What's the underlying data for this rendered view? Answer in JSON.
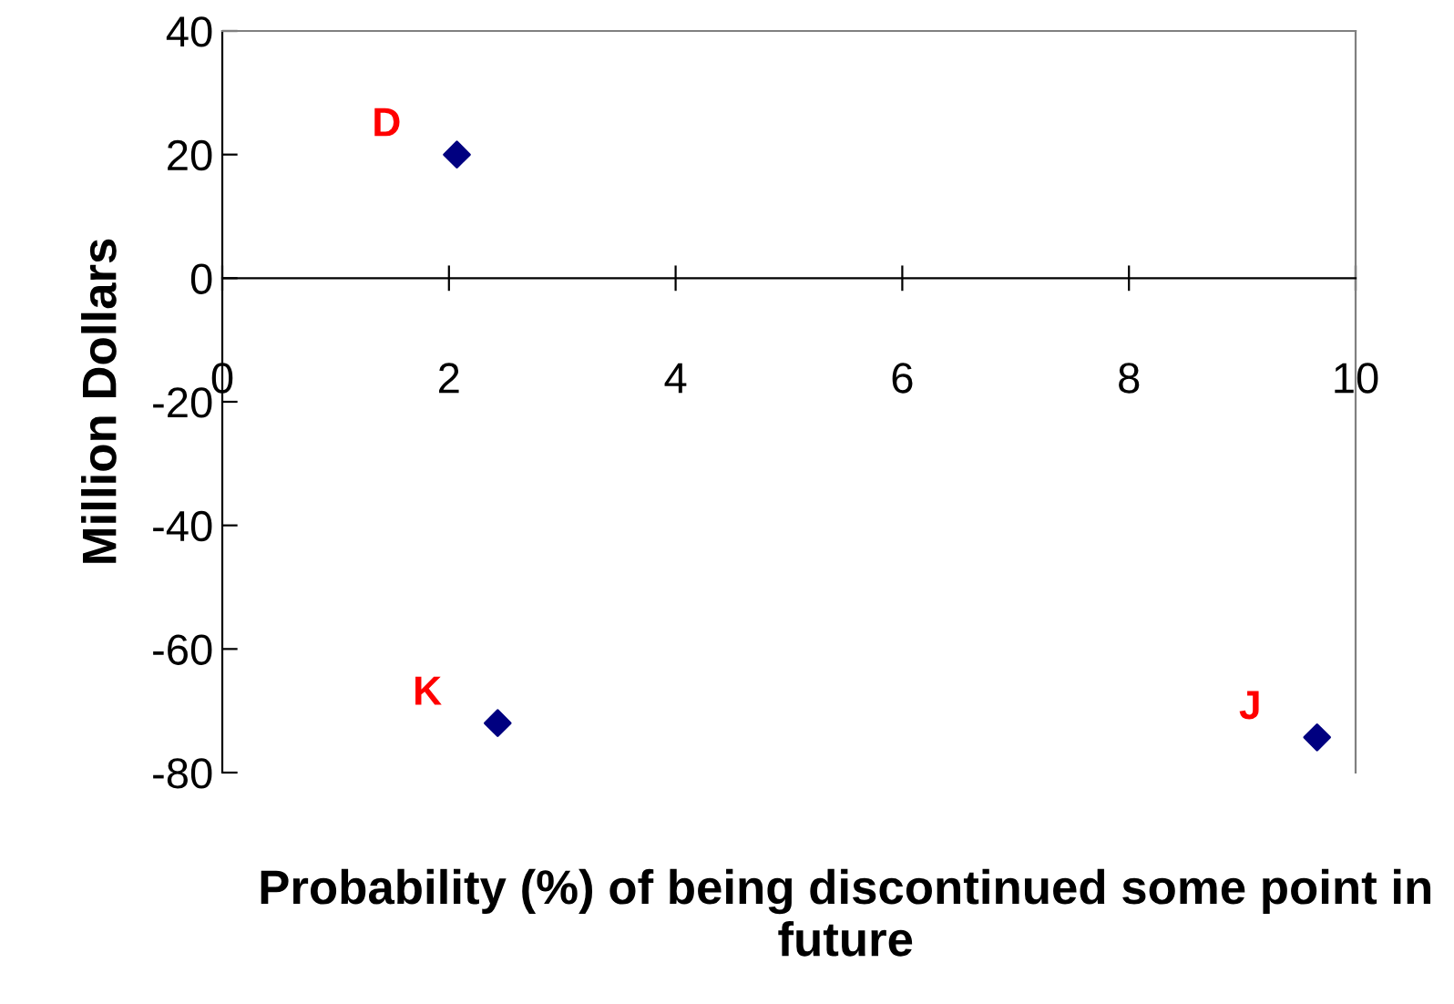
{
  "chart_data": {
    "type": "scatter",
    "xlabel": "Probability (%) of being discontinued some point in future",
    "ylabel": "Million Dollars",
    "x": [
      2.07,
      2.43,
      9.66
    ],
    "series": [
      {
        "color": "#000080",
        "values": [
          20,
          -72,
          -74.3
        ]
      }
    ],
    "annotations": [
      {
        "text": "D",
        "x": 2.07,
        "y": 20
      },
      {
        "text": "K",
        "x": 2.43,
        "y": -72
      },
      {
        "text": "J",
        "x": 9.66,
        "y": -74.3
      }
    ],
    "xlim": [
      0,
      10
    ],
    "xticks": [
      0,
      2,
      4,
      6,
      8,
      10
    ],
    "ylim": [
      -80,
      40
    ],
    "yticks": [
      -80,
      -60,
      -40,
      -20,
      0,
      20,
      40
    ],
    "marker": "diamond",
    "grid": false,
    "legend": false
  }
}
